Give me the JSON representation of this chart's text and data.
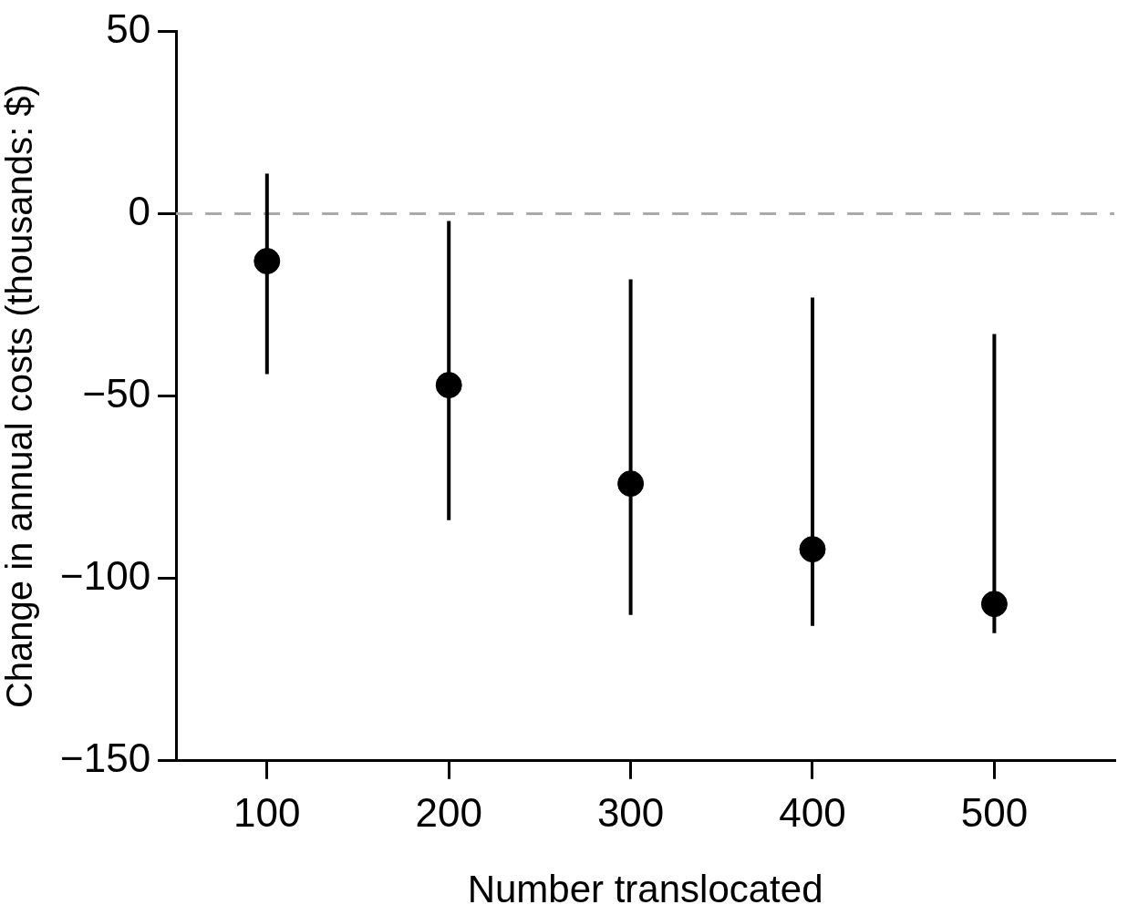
{
  "chart_data": {
    "type": "scatter",
    "xlabel": "Number translocated",
    "ylabel": "Change in annual costs (thousands: $)",
    "x": [
      100,
      200,
      300,
      400,
      500
    ],
    "series": [
      {
        "color": "#000000",
        "values": [
          -13,
          -47,
          -74,
          -92,
          -107
        ],
        "errors": [
          [
            -44,
            11
          ],
          [
            -84,
            -2
          ],
          [
            -110,
            -18
          ],
          [
            -113,
            -23
          ],
          [
            -115,
            -33
          ]
        ]
      }
    ],
    "xlim": [
      50,
      566
    ],
    "xticks": [
      100,
      200,
      300,
      400,
      500
    ],
    "ylim": [
      -150,
      50
    ],
    "yticks": [
      -150,
      -100,
      -50,
      0,
      50
    ],
    "ref_lines": [
      {
        "axis": "y",
        "value": 0,
        "color": "#aaaaaa",
        "line_style": "dashed"
      }
    ],
    "grid": false,
    "legend": false,
    "marker": "circle"
  }
}
